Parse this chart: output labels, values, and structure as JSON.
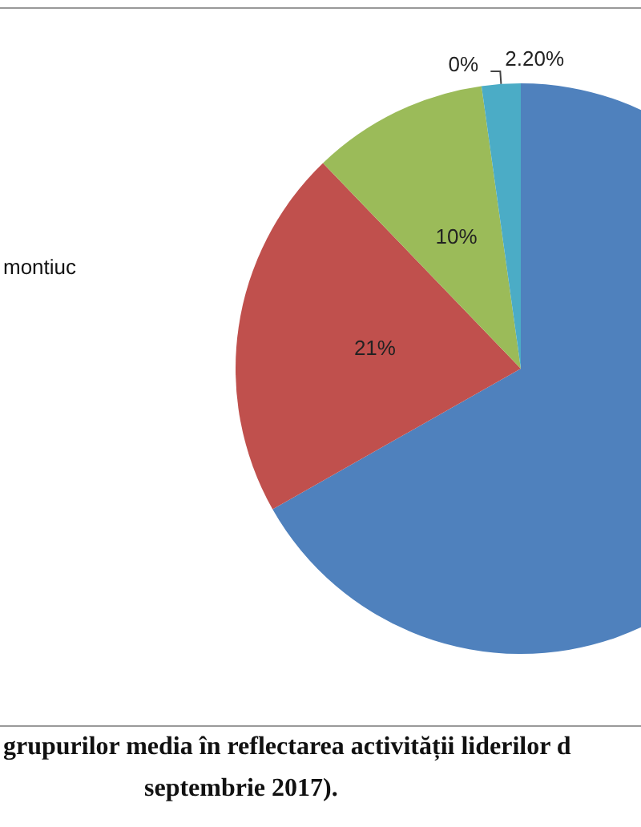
{
  "chart_data": {
    "type": "pie",
    "categories": [
      null,
      null,
      null,
      null,
      null
    ],
    "values": [
      66.8,
      21,
      10,
      0,
      2.2
    ],
    "colors": [
      "#4f81bd",
      "#c0504d",
      "#9bbb59",
      "#8064a2",
      "#4bacc6"
    ],
    "value_labels": [
      null,
      "21%",
      "10%",
      "0%",
      "2.20%"
    ],
    "annotations": [
      "montiuc",
      "grupurilor media în reflectarea activității liderilor d",
      "septembrie 2017)."
    ]
  }
}
